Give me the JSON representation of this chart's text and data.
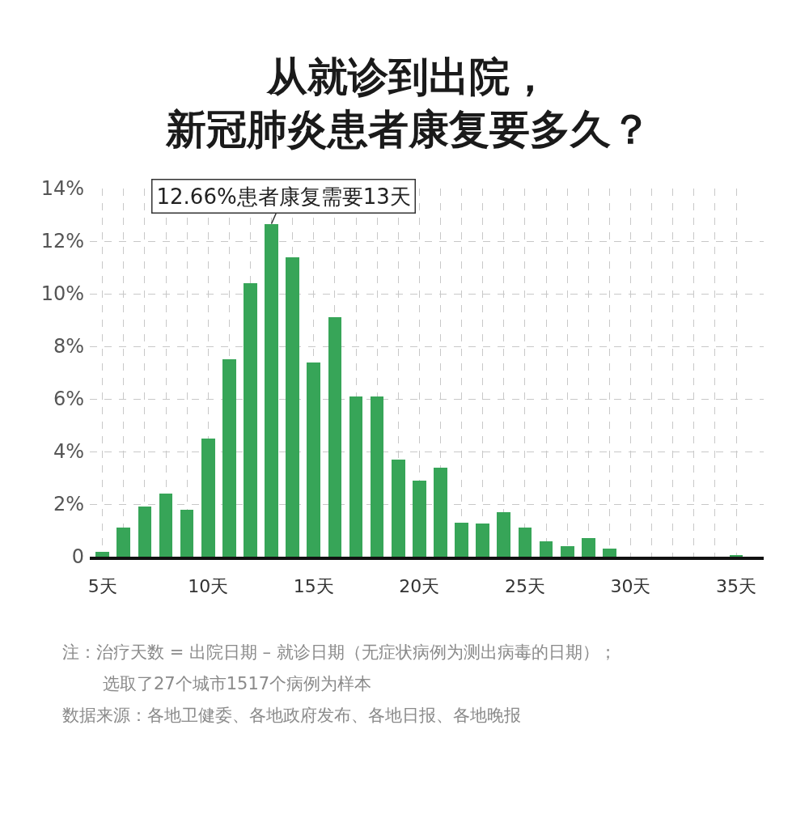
{
  "chart_data": {
    "type": "bar",
    "title": "从就诊到出院，新冠肺炎患者康复要多久？",
    "x": [
      5,
      6,
      7,
      8,
      9,
      10,
      11,
      12,
      13,
      14,
      15,
      16,
      17,
      18,
      19,
      20,
      21,
      22,
      23,
      24,
      25,
      26,
      27,
      28,
      29,
      30,
      31,
      32,
      33,
      34,
      35
    ],
    "values": [
      0.2,
      1.1,
      1.9,
      2.4,
      1.8,
      4.5,
      7.5,
      10.4,
      12.66,
      11.4,
      7.4,
      9.1,
      6.1,
      6.1,
      3.7,
      2.9,
      3.4,
      1.3,
      1.25,
      1.7,
      1.1,
      0.6,
      0.4,
      0.7,
      0.3,
      0,
      0,
      0,
      0,
      0,
      0.07
    ],
    "color": "#37a558",
    "xlim": [
      4.4,
      36.3
    ],
    "xticks": [
      {
        "value": 5,
        "label": "5天"
      },
      {
        "value": 6,
        "label": null
      },
      {
        "value": 7,
        "label": null
      },
      {
        "value": 8,
        "label": null
      },
      {
        "value": 9,
        "label": null
      },
      {
        "value": 10,
        "label": "10天"
      },
      {
        "value": 11,
        "label": null
      },
      {
        "value": 12,
        "label": null
      },
      {
        "value": 13,
        "label": null
      },
      {
        "value": 14,
        "label": null
      },
      {
        "value": 15,
        "label": "15天"
      },
      {
        "value": 16,
        "label": null
      },
      {
        "value": 17,
        "label": null
      },
      {
        "value": 18,
        "label": null
      },
      {
        "value": 19,
        "label": null
      },
      {
        "value": 20,
        "label": "20天"
      },
      {
        "value": 21,
        "label": null
      },
      {
        "value": 22,
        "label": null
      },
      {
        "value": 23,
        "label": null
      },
      {
        "value": 24,
        "label": null
      },
      {
        "value": 25,
        "label": "25天"
      },
      {
        "value": 26,
        "label": null
      },
      {
        "value": 27,
        "label": null
      },
      {
        "value": 28,
        "label": null
      },
      {
        "value": 29,
        "label": null
      },
      {
        "value": 30,
        "label": "30天"
      },
      {
        "value": 31,
        "label": null
      },
      {
        "value": 32,
        "label": null
      },
      {
        "value": 33,
        "label": null
      },
      {
        "value": 34,
        "label": null
      },
      {
        "value": 35,
        "label": "35天"
      }
    ],
    "ylim": [
      0,
      14
    ],
    "yticks": [
      0,
      {
        "value": 2,
        "label": "2%"
      },
      {
        "value": 4,
        "label": "4%"
      },
      {
        "value": 6,
        "label": "6%"
      },
      {
        "value": 8,
        "label": "8%"
      },
      {
        "value": 10,
        "label": "10%"
      },
      {
        "value": 12,
        "label": "12%"
      },
      {
        "value": 14,
        "label": "14%"
      }
    ],
    "grid": true,
    "annotations": [
      {
        "text": "12.66%患者康复需要13天",
        "x": 13,
        "y": 12.66
      },
      "注：治疗天数 = 出院日期 – 就诊日期（无症状病例为测出病毒的日期）；",
      "选取了27个城市1517个病例为样本",
      "数据来源：各地卫健委、各地政府发布、各地日报、各地晚报"
    ]
  }
}
